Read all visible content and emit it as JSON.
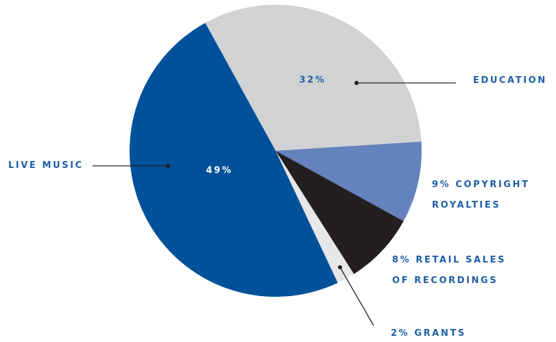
{
  "chart_data": {
    "type": "pie",
    "categories": [
      "EDUCATION",
      "COPYRIGHT ROYALTIES",
      "RETAIL SALES OF RECORDINGS",
      "GRANTS",
      "LIVE MUSIC"
    ],
    "values": [
      32,
      9,
      8,
      2,
      49
    ],
    "value_labels": [
      "32%",
      "9%",
      "8%",
      "2%",
      "49%"
    ],
    "colors": [
      "#d1d2d4",
      "#6482bd",
      "#231f20",
      "#e6e7e9",
      "#00519a"
    ]
  }
}
